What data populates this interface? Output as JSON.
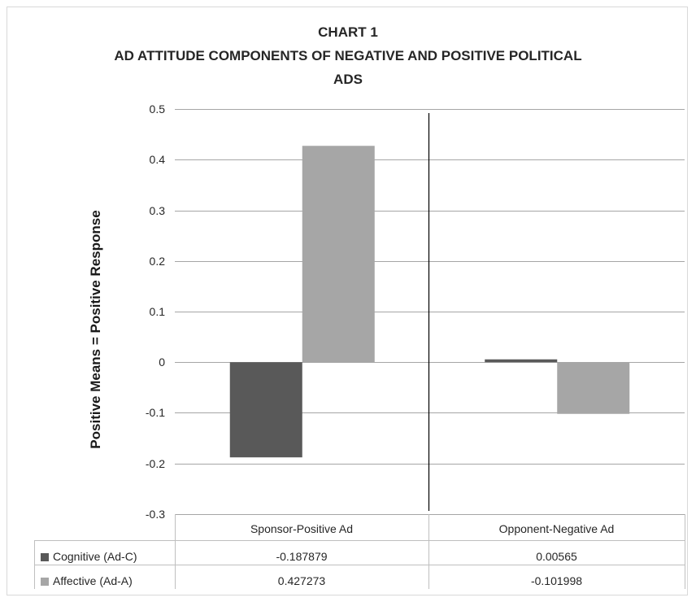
{
  "chart_data": {
    "type": "bar",
    "title_lines": [
      "CHART 1",
      "AD ATTITUDE COMPONENTS OF NEGATIVE AND POSITIVE POLITICAL",
      "ADS"
    ],
    "ylabel": "Positive Means = Positive Response",
    "ylim": [
      -0.3,
      0.5
    ],
    "yticks": [
      "0.5",
      "0.4",
      "0.3",
      "0.2",
      "0.1",
      "0",
      "-0.1",
      "-0.2",
      "-0.3"
    ],
    "categories": [
      "Sponsor-Positive Ad",
      "Opponent-Negative Ad"
    ],
    "series": [
      {
        "name": "Cognitive (Ad-C)",
        "values": [
          -0.187879,
          0.00565
        ],
        "labels": [
          "-0.187879",
          "0.00565"
        ],
        "color": "#595959"
      },
      {
        "name": "Affective (Ad-A)",
        "values": [
          0.427273,
          -0.101998
        ],
        "labels": [
          "0.427273",
          "-0.101998"
        ],
        "color": "#a6a6a6"
      }
    ],
    "grid": true,
    "legend": "data-table"
  }
}
